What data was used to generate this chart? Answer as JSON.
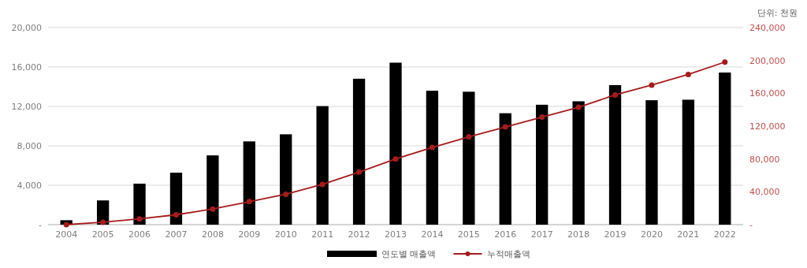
{
  "chart_data": {
    "type": "bar",
    "categories": [
      "2004",
      "2005",
      "2006",
      "2007",
      "2008",
      "2009",
      "2010",
      "2011",
      "2012",
      "2013",
      "2014",
      "2015",
      "2016",
      "2017",
      "2018",
      "2019",
      "2020",
      "2021",
      "2022"
    ],
    "series": [
      {
        "name": "연도별 매출액",
        "color": "#000000",
        "values": [
          450,
          2460,
          4160,
          5270,
          7030,
          8450,
          9170,
          12030,
          14810,
          16440,
          13590,
          13490,
          11310,
          12170,
          12520,
          14160,
          12630,
          12680,
          15440
        ]
      },
      {
        "name": "누적매출액",
        "type": "line",
        "axis": "y2",
        "color": "#a51c1c",
        "values": [
          0,
          3000,
          7000,
          12000,
          19000,
          28000,
          37000,
          49000,
          64000,
          80000,
          94000,
          107000,
          119000,
          131000,
          143000,
          158000,
          170000,
          183000,
          198000
        ]
      }
    ],
    "ylim": [
      0,
      20000
    ],
    "yticks": [
      {
        "value": 0,
        "label": "-"
      },
      {
        "value": 4000,
        "label": "4,000"
      },
      {
        "value": 8000,
        "label": "8,000"
      },
      {
        "value": 12000,
        "label": "12,000"
      },
      {
        "value": 16000,
        "label": "16,000"
      },
      {
        "value": 20000,
        "label": "20,000"
      }
    ],
    "y2lim": [
      0,
      240000
    ],
    "y2ticks": [
      {
        "value": 0,
        "label": "-"
      },
      {
        "value": 40000,
        "label": "40,000"
      },
      {
        "value": 80000,
        "label": "80,000"
      },
      {
        "value": 120000,
        "label": "120,000"
      },
      {
        "value": 160000,
        "label": "160,000"
      },
      {
        "value": 200000,
        "label": "200,000"
      },
      {
        "value": 240000,
        "label": "240,000"
      }
    ],
    "y2label": "단위: 천원",
    "grid": "y",
    "legend": "bottom",
    "marker": "circle"
  }
}
